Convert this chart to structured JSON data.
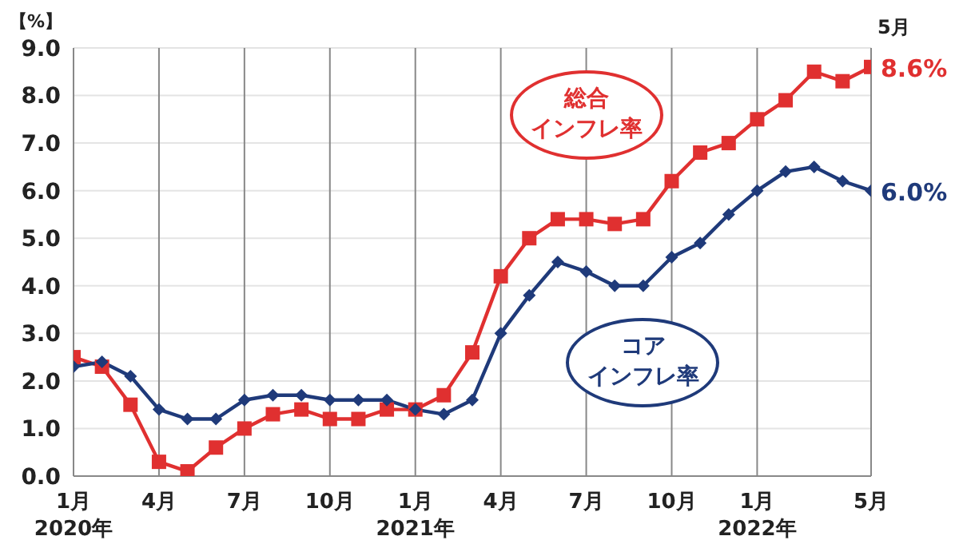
{
  "chart_data": {
    "type": "line",
    "ylabel": "【%】",
    "categories": [
      "1月\n2020年",
      null,
      null,
      "4月",
      null,
      null,
      "7月",
      null,
      null,
      "10月",
      null,
      null,
      "1月\n2021年",
      null,
      null,
      "4月",
      null,
      null,
      "7月",
      null,
      null,
      "10月",
      null,
      null,
      "1月\n2022年",
      null,
      null,
      null,
      "5月"
    ],
    "series": [
      {
        "name": "総合インフレ率",
        "color": "#e03030",
        "marker": "square",
        "values": [
          2.5,
          2.3,
          1.5,
          0.3,
          0.1,
          0.6,
          1.0,
          1.3,
          1.4,
          1.2,
          1.2,
          1.4,
          1.4,
          1.7,
          2.6,
          4.2,
          5.0,
          5.4,
          5.4,
          5.3,
          5.4,
          6.2,
          6.8,
          7.0,
          7.5,
          7.9,
          8.5,
          8.3,
          8.6
        ],
        "value_labels": [
          null,
          null,
          null,
          null,
          null,
          null,
          null,
          null,
          null,
          null,
          null,
          null,
          null,
          null,
          null,
          null,
          null,
          null,
          null,
          null,
          null,
          null,
          null,
          null,
          null,
          null,
          null,
          null,
          "8.6%"
        ]
      },
      {
        "name": "コアインフレ率",
        "color": "#1f3a7a",
        "marker": "diamond",
        "values": [
          2.3,
          2.4,
          2.1,
          1.4,
          1.2,
          1.2,
          1.6,
          1.7,
          1.7,
          1.6,
          1.6,
          1.6,
          1.4,
          1.3,
          1.6,
          3.0,
          3.8,
          4.5,
          4.3,
          4.0,
          4.0,
          4.6,
          4.9,
          5.5,
          6.0,
          6.4,
          6.5,
          6.2,
          6.0
        ],
        "value_labels": [
          null,
          null,
          null,
          null,
          null,
          null,
          null,
          null,
          null,
          null,
          null,
          null,
          null,
          null,
          null,
          null,
          null,
          null,
          null,
          null,
          null,
          null,
          null,
          null,
          null,
          null,
          null,
          null,
          "6.0%"
        ]
      }
    ],
    "ylim": [
      0,
      9
    ],
    "yticks": [
      {
        "value": 0,
        "label": "0.0"
      },
      {
        "value": 1,
        "label": "1.0"
      },
      {
        "value": 2,
        "label": "2.0"
      },
      {
        "value": 3,
        "label": "3.0"
      },
      {
        "value": 4,
        "label": "4.0"
      },
      {
        "value": 5,
        "label": "5.0"
      },
      {
        "value": 6,
        "label": "6.0"
      },
      {
        "value": 7,
        "label": "7.0"
      },
      {
        "value": 8,
        "label": "8.0"
      },
      {
        "value": 9,
        "label": "9.0"
      }
    ],
    "grid": true,
    "legend": false,
    "line_style": "solid",
    "annotations": [
      "5月"
    ]
  }
}
